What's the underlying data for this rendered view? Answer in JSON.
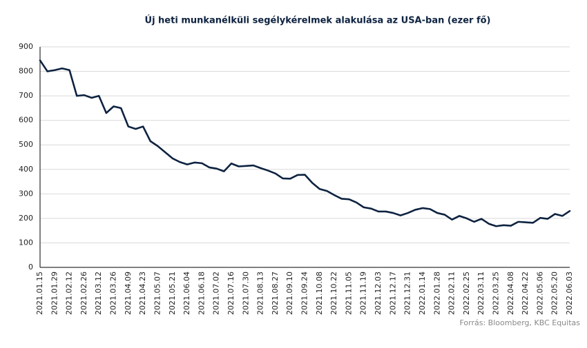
{
  "chart_data": {
    "type": "line",
    "title": "Új heti munkanélküli segélykérelmek alakulása az USA-ban (ezer fő)",
    "source": "Forrás: Bloomberg, KBC Equitas",
    "categories": [
      "2021.01.15",
      null,
      "2021.01.29",
      null,
      "2021.02.12",
      null,
      "2021.02.26",
      null,
      "2021.03.12",
      null,
      "2021.03.26",
      null,
      "2021.04.09",
      null,
      "2021.04.23",
      null,
      "2021.05.07",
      null,
      "2021.05.21",
      null,
      "2021.06.04",
      null,
      "2021.06.18",
      null,
      "2021.07.02",
      null,
      "2021.07.16",
      null,
      "2021.07.30",
      null,
      "2021.08.13",
      null,
      "2021.08.27",
      null,
      "2021.09.10",
      null,
      "2021.09.24",
      null,
      "2021.10.08",
      null,
      "2021.10.22",
      null,
      "2021.11.05",
      null,
      "2021.11.19",
      null,
      "2021.12.03",
      null,
      "2021.12.17",
      null,
      "2021.12.31",
      null,
      "2022.01.14",
      null,
      "2022.01.28",
      null,
      "2022.02.11",
      null,
      "2022.02.25",
      null,
      "2022.03.11",
      null,
      "2022.03.25",
      null,
      "2022.04.08",
      null,
      "2022.04.22",
      null,
      "2022.05.06",
      null,
      "2022.05.20",
      null,
      "2022.06.03"
    ],
    "series": [
      {
        "name": "Új heti munkanélküli segélykérelmek",
        "color": "#0d2240",
        "values": [
          845,
          800,
          805,
          812,
          805,
          700,
          703,
          692,
          700,
          630,
          657,
          650,
          575,
          565,
          575,
          515,
          495,
          470,
          445,
          430,
          420,
          428,
          425,
          408,
          403,
          392,
          424,
          412,
          414,
          416,
          405,
          395,
          383,
          363,
          362,
          377,
          378,
          345,
          320,
          312,
          295,
          280,
          278,
          265,
          245,
          240,
          228,
          228,
          222,
          212,
          222,
          235,
          242,
          238,
          222,
          215,
          195,
          210,
          200,
          186,
          198,
          178,
          168,
          172,
          170,
          186,
          184,
          182,
          202,
          198,
          218,
          210,
          230
        ]
      }
    ],
    "ylim": [
      0,
      900
    ],
    "yticks": [
      0,
      100,
      200,
      300,
      400,
      500,
      600,
      700,
      800,
      900
    ],
    "grid": true
  }
}
